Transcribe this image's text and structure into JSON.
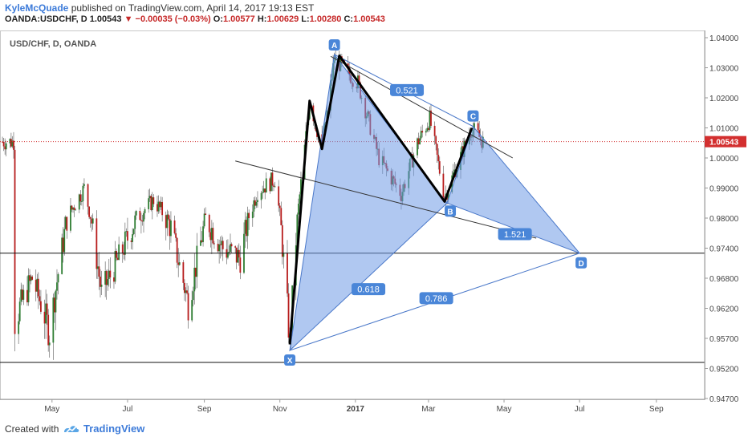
{
  "header": {
    "author": "KyleMcQuade",
    "published_text": " published on TradingView.com, April 14, 2017 19:13 EST",
    "symbol": "OANDA:USDCHF, D",
    "last": "1.00543",
    "change": "−0.00035 (−0.03%)",
    "o_label": "O:",
    "o_value": "1.00577",
    "h_label": "H:",
    "h_value": "1.00629",
    "l_label": "L:",
    "l_value": "1.00280",
    "c_label": "C:",
    "c_value": "1.00543"
  },
  "footer": {
    "created_with": "Created with",
    "brand": "TradingView"
  },
  "colors": {
    "up": "#2e7d32",
    "down": "#b71c1c",
    "pattern_fill": "#6f9be6",
    "pattern_stroke": "#4a78c9",
    "label_bg": "#4a86d8",
    "price_line": "#d32f2f"
  },
  "chart_data": {
    "type": "candlestick",
    "title": "USD/CHF, D, OANDA",
    "y_ticks": [
      "1.04000",
      "1.03000",
      "1.02000",
      "1.01000",
      "1.00000",
      "0.99000",
      "0.98000",
      "0.97400",
      "0.96800",
      "0.96200",
      "0.95700",
      "0.95200",
      "0.94700"
    ],
    "y_tick_values": [
      1.04,
      1.03,
      1.02,
      1.01,
      1.0,
      0.99,
      0.98,
      0.974,
      0.968,
      0.962,
      0.957,
      0.952,
      0.947
    ],
    "x_ticks": [
      "May",
      "Jul",
      "Sep",
      "Nov",
      "2017",
      "Mar",
      "May",
      "Jul",
      "Sep"
    ],
    "x_tick_dates": [
      "2016-05-01",
      "2016-07-01",
      "2016-09-01",
      "2016-11-01",
      "2017-01-01",
      "2017-03-01",
      "2017-05-01",
      "2017-07-01",
      "2017-09-01"
    ],
    "current_price": "1.00543",
    "current_price_value": 1.00543,
    "horizontal_levels": [
      0.973,
      0.953
    ],
    "pattern_points": [
      {
        "label": "X",
        "date": "2016-11-09",
        "value": 0.955
      },
      {
        "label": "A",
        "date": "2016-12-15",
        "value": 1.0344
      },
      {
        "label": "B",
        "date": "2017-03-16",
        "value": 0.985
      },
      {
        "label": "C",
        "date": "2017-04-06",
        "value": 1.0105
      },
      {
        "label": "D",
        "date": "2017-07-01",
        "value": 0.973
      }
    ],
    "ratios": [
      {
        "label": "0.521",
        "between": "A-C"
      },
      {
        "label": "1.521",
        "between": "B-D"
      },
      {
        "label": "0.618",
        "between": "X-B"
      },
      {
        "label": "0.786",
        "between": "X-D"
      }
    ],
    "trendlines": [
      {
        "from": {
          "date": "2016-12-12",
          "value": 1.0338
        },
        "to": {
          "date": "2017-05-08",
          "value": 1.0
        }
      },
      {
        "from": {
          "date": "2016-09-26",
          "value": 0.999
        },
        "to": {
          "date": "2017-05-27",
          "value": 0.976
        }
      }
    ],
    "wave_path": [
      {
        "date": "2016-11-09",
        "value": 0.956
      },
      {
        "date": "2016-11-25",
        "value": 1.019
      },
      {
        "date": "2016-12-05",
        "value": 1.003
      },
      {
        "date": "2016-12-19",
        "value": 1.034
      },
      {
        "date": "2017-03-14",
        "value": 0.9855
      },
      {
        "date": "2017-04-05",
        "value": 1.01
      }
    ],
    "candles_approx": [
      {
        "date": "2016-04-01",
        "close": 0.96
      },
      {
        "date": "2016-04-15",
        "close": 0.968
      },
      {
        "date": "2016-04-29",
        "close": 0.958
      },
      {
        "date": "2016-05-13",
        "close": 0.98
      },
      {
        "date": "2016-05-27",
        "close": 0.99
      },
      {
        "date": "2016-06-10",
        "close": 0.965
      },
      {
        "date": "2016-06-24",
        "close": 0.972
      },
      {
        "date": "2016-07-08",
        "close": 0.98
      },
      {
        "date": "2016-07-22",
        "close": 0.986
      },
      {
        "date": "2016-08-05",
        "close": 0.978
      },
      {
        "date": "2016-08-19",
        "close": 0.963
      },
      {
        "date": "2016-09-02",
        "close": 0.98
      },
      {
        "date": "2016-09-16",
        "close": 0.974
      },
      {
        "date": "2016-09-30",
        "close": 0.972
      },
      {
        "date": "2016-10-14",
        "close": 0.989
      },
      {
        "date": "2016-10-28",
        "close": 0.993
      },
      {
        "date": "2016-11-09",
        "close": 0.981
      },
      {
        "date": "2016-11-25",
        "close": 1.015
      },
      {
        "date": "2016-12-09",
        "close": 1.016
      },
      {
        "date": "2016-12-23",
        "close": 1.028
      },
      {
        "date": "2017-01-06",
        "close": 1.016
      },
      {
        "date": "2017-01-20",
        "close": 1.002
      },
      {
        "date": "2017-02-03",
        "close": 0.992
      },
      {
        "date": "2017-02-17",
        "close": 1.005
      },
      {
        "date": "2017-03-03",
        "close": 1.01
      },
      {
        "date": "2017-03-17",
        "close": 0.99
      },
      {
        "date": "2017-03-31",
        "close": 1.003
      },
      {
        "date": "2017-04-14",
        "close": 1.0054
      }
    ]
  }
}
